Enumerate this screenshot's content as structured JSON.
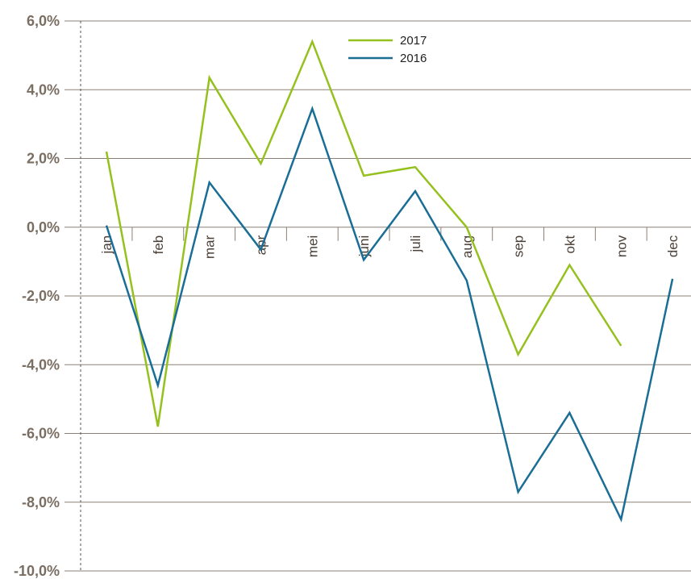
{
  "chart_data": {
    "type": "line",
    "categories": [
      "jan",
      "feb",
      "mar",
      "apr",
      "mei",
      "juni",
      "juli",
      "aug",
      "sep",
      "okt",
      "nov",
      "dec"
    ],
    "series": [
      {
        "name": "2017",
        "color": "#95c11f",
        "values": [
          2.2,
          -5.8,
          4.35,
          1.85,
          5.4,
          1.5,
          1.75,
          0.0,
          -3.7,
          -1.1,
          -3.45,
          null
        ]
      },
      {
        "name": "2016",
        "color": "#1a6e96",
        "values": [
          0.05,
          -4.6,
          1.3,
          -0.65,
          3.45,
          -0.95,
          1.05,
          -1.55,
          -7.7,
          -5.4,
          -8.5,
          -1.5
        ]
      }
    ],
    "ylim": [
      -10,
      6
    ],
    "yticks": [
      6,
      4,
      2,
      0,
      -2,
      -4,
      -6,
      -8,
      -10
    ],
    "ytick_labels": [
      "6,0%",
      "4,0%",
      "2,0%",
      "0,0%",
      "-2,0%",
      "-4,0%",
      "-6,0%",
      "-8,0%",
      "-10,0%"
    ],
    "grid": true,
    "legend_position": "top-center"
  }
}
